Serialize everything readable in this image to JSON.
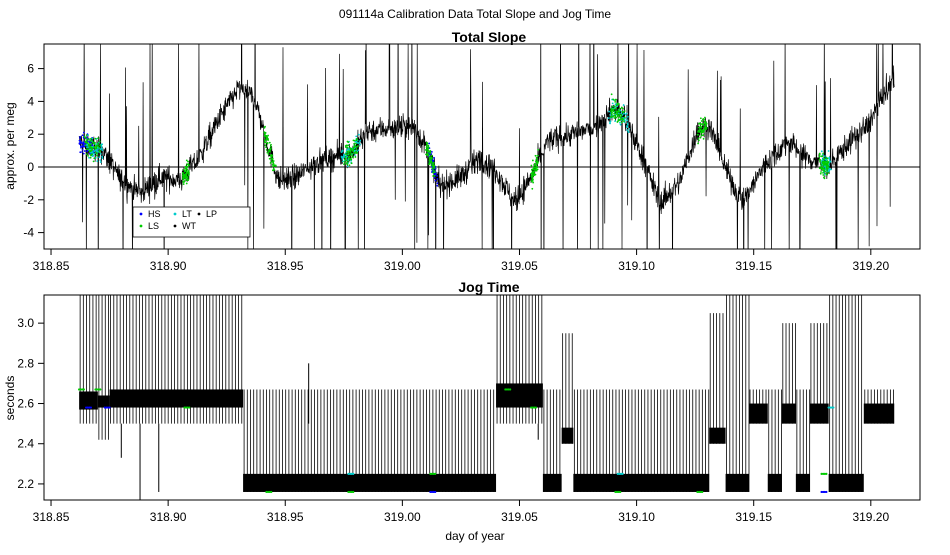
{
  "figure": {
    "title": "091114a   Calibration Data Total Slope and Jog Time",
    "xlabel": "day of year"
  },
  "chart_data": [
    {
      "type": "line",
      "title": "Total Slope",
      "ylabel": "approx. per meg",
      "xlim": [
        318.847,
        319.221
      ],
      "ylim": [
        -5.0,
        7.5
      ],
      "x_ticks": [
        318.85,
        318.9,
        318.95,
        319.0,
        319.05,
        319.1,
        319.15,
        319.2
      ],
      "x_tick_labels": [
        "318.85",
        "318.90",
        "318.95",
        "319.00",
        "319.05",
        "319.10",
        "319.15",
        "319.20"
      ],
      "y_ticks": [
        -4,
        -2,
        0,
        2,
        4,
        6
      ],
      "y_tick_labels": [
        "-4",
        "-2",
        "0",
        "2",
        "4",
        "6"
      ],
      "reference_line_y": 0,
      "data_range_x": [
        318.862,
        319.21
      ],
      "trend": [
        {
          "x": 318.862,
          "y": 1.5
        },
        {
          "x": 318.872,
          "y": 1.0
        },
        {
          "x": 318.88,
          "y": -0.8
        },
        {
          "x": 318.888,
          "y": -1.6
        },
        {
          "x": 318.897,
          "y": -0.6
        },
        {
          "x": 318.905,
          "y": -0.8
        },
        {
          "x": 318.913,
          "y": 0.5
        },
        {
          "x": 318.922,
          "y": 3.0
        },
        {
          "x": 318.93,
          "y": 4.8
        },
        {
          "x": 318.937,
          "y": 4.2
        },
        {
          "x": 318.942,
          "y": 1.6
        },
        {
          "x": 318.947,
          "y": -0.8
        },
        {
          "x": 318.955,
          "y": -0.6
        },
        {
          "x": 318.962,
          "y": 0.2
        },
        {
          "x": 318.97,
          "y": 0.6
        },
        {
          "x": 318.978,
          "y": 0.8
        },
        {
          "x": 318.985,
          "y": 2.2
        },
        {
          "x": 318.995,
          "y": 2.4
        },
        {
          "x": 319.005,
          "y": 2.4
        },
        {
          "x": 319.011,
          "y": 1.0
        },
        {
          "x": 319.016,
          "y": -1.2
        },
        {
          "x": 319.025,
          "y": -0.6
        },
        {
          "x": 319.033,
          "y": 0.6
        },
        {
          "x": 319.04,
          "y": -0.2
        },
        {
          "x": 319.048,
          "y": -2.2
        },
        {
          "x": 319.055,
          "y": -0.6
        },
        {
          "x": 319.062,
          "y": 1.6
        },
        {
          "x": 319.072,
          "y": 2.0
        },
        {
          "x": 319.082,
          "y": 2.4
        },
        {
          "x": 319.09,
          "y": 3.6
        },
        {
          "x": 319.095,
          "y": 3.0
        },
        {
          "x": 319.102,
          "y": 0.8
        },
        {
          "x": 319.11,
          "y": -2.2
        },
        {
          "x": 319.118,
          "y": -1.0
        },
        {
          "x": 319.126,
          "y": 2.2
        },
        {
          "x": 319.131,
          "y": 2.6
        },
        {
          "x": 319.137,
          "y": 0.2
        },
        {
          "x": 319.145,
          "y": -2.2
        },
        {
          "x": 319.155,
          "y": 0.2
        },
        {
          "x": 319.165,
          "y": 1.6
        },
        {
          "x": 319.172,
          "y": 0.6
        },
        {
          "x": 319.182,
          "y": 0.0
        },
        {
          "x": 319.19,
          "y": 1.4
        },
        {
          "x": 319.198,
          "y": 2.4
        },
        {
          "x": 319.205,
          "y": 4.2
        },
        {
          "x": 319.21,
          "y": 5.4
        }
      ],
      "highlight_spans": [
        {
          "x": [
            318.862,
            318.868
          ],
          "color": "#0000ff"
        },
        {
          "x": [
            318.865,
            318.872
          ],
          "color": "#00cccc"
        },
        {
          "x": [
            318.864,
            318.871
          ],
          "color": "#00cc00"
        },
        {
          "x": [
            318.906,
            318.909
          ],
          "color": "#00cc00"
        },
        {
          "x": [
            318.941,
            318.946
          ],
          "color": "#00cc00"
        },
        {
          "x": [
            318.974,
            318.982
          ],
          "color": "#00cccc"
        },
        {
          "x": [
            318.975,
            318.981
          ],
          "color": "#00cc00"
        },
        {
          "x": [
            319.011,
            319.015
          ],
          "color": "#0000ff"
        },
        {
          "x": [
            319.01,
            319.014
          ],
          "color": "#00cc00"
        },
        {
          "x": [
            319.055,
            319.058
          ],
          "color": "#00cc00"
        },
        {
          "x": [
            319.088,
            319.097
          ],
          "color": "#00cccc"
        },
        {
          "x": [
            319.089,
            319.095
          ],
          "color": "#00cc00"
        },
        {
          "x": [
            319.126,
            319.13
          ],
          "color": "#00cc00"
        },
        {
          "x": [
            319.179,
            319.183
          ],
          "color": "#00cccc"
        },
        {
          "x": [
            319.178,
            319.182
          ],
          "color": "#00cc00"
        }
      ],
      "legend": {
        "placement": "bottom-left",
        "entries": [
          {
            "label": "HS",
            "color": "#0000ff"
          },
          {
            "label": "LS",
            "color": "#00cc00"
          },
          {
            "label": "LT",
            "color": "#00cccc"
          },
          {
            "label": "WT",
            "color": "#000000"
          },
          {
            "label": "LP",
            "color": "#000000"
          }
        ]
      }
    },
    {
      "type": "line",
      "title": "Jog Time",
      "ylabel": "seconds",
      "xlim": [
        318.847,
        319.221
      ],
      "ylim": [
        2.12,
        3.14
      ],
      "x_ticks": [
        318.85,
        318.9,
        318.95,
        319.0,
        319.05,
        319.1,
        319.15,
        319.2
      ],
      "x_tick_labels": [
        "318.85",
        "318.90",
        "318.95",
        "319.00",
        "319.05",
        "319.10",
        "319.15",
        "319.20"
      ],
      "y_ticks": [
        2.2,
        2.4,
        2.6,
        2.8,
        3.0
      ],
      "y_tick_labels": [
        "2.2",
        "2.4",
        "2.6",
        "2.8",
        "3.0"
      ],
      "segments": [
        {
          "x": [
            318.862,
            318.87
          ],
          "base": 2.6,
          "band": [
            2.57,
            2.66
          ],
          "top": 3.14,
          "bottom": 2.5
        },
        {
          "x": [
            318.87,
            318.875
          ],
          "base": 2.6,
          "band": [
            2.58,
            2.64
          ],
          "top": 3.14,
          "bottom": 2.42
        },
        {
          "x": [
            318.875,
            318.932
          ],
          "base": 2.62,
          "band": [
            2.58,
            2.67
          ],
          "top": 3.14,
          "bottom": 2.5
        },
        {
          "x": [
            318.932,
            319.04
          ],
          "base": 2.2,
          "band": [
            2.16,
            2.25
          ],
          "top": 2.67,
          "bottom": 2.16
        },
        {
          "x": [
            319.04,
            319.06
          ],
          "base": 2.64,
          "band": [
            2.58,
            2.7
          ],
          "top": 3.14,
          "bottom": 2.5
        },
        {
          "x": [
            319.06,
            319.068
          ],
          "base": 2.2,
          "band": [
            2.16,
            2.25
          ],
          "top": 2.67,
          "bottom": 2.16
        },
        {
          "x": [
            319.068,
            319.073
          ],
          "base": 2.44,
          "band": [
            2.4,
            2.48
          ],
          "top": 2.95,
          "bottom": 2.4
        },
        {
          "x": [
            319.073,
            319.131
          ],
          "base": 2.2,
          "band": [
            2.16,
            2.25
          ],
          "top": 2.67,
          "bottom": 2.16
        },
        {
          "x": [
            319.131,
            319.138
          ],
          "base": 2.44,
          "band": [
            2.4,
            2.48
          ],
          "top": 3.05,
          "bottom": 2.4
        },
        {
          "x": [
            319.138,
            319.148
          ],
          "base": 2.2,
          "band": [
            2.16,
            2.25
          ],
          "top": 3.14,
          "bottom": 2.16
        },
        {
          "x": [
            319.148,
            319.156
          ],
          "base": 2.55,
          "band": [
            2.5,
            2.6
          ],
          "top": 2.67,
          "bottom": 2.5
        },
        {
          "x": [
            319.156,
            319.162
          ],
          "base": 2.2,
          "band": [
            2.16,
            2.25
          ],
          "top": 2.67,
          "bottom": 2.16
        },
        {
          "x": [
            319.162,
            319.168
          ],
          "base": 2.55,
          "band": [
            2.5,
            2.6
          ],
          "top": 3.0,
          "bottom": 2.5
        },
        {
          "x": [
            319.168,
            319.174
          ],
          "base": 2.2,
          "band": [
            2.16,
            2.25
          ],
          "top": 2.67,
          "bottom": 2.16
        },
        {
          "x": [
            319.174,
            319.182
          ],
          "base": 2.55,
          "band": [
            2.5,
            2.6
          ],
          "top": 3.0,
          "bottom": 2.5
        },
        {
          "x": [
            319.182,
            319.197
          ],
          "base": 2.2,
          "band": [
            2.16,
            2.25
          ],
          "top": 3.14,
          "bottom": 2.16
        },
        {
          "x": [
            319.197,
            319.21
          ],
          "base": 2.55,
          "band": [
            2.5,
            2.6
          ],
          "top": 2.67,
          "bottom": 2.5
        }
      ],
      "outliers": [
        {
          "x": 318.88,
          "y": 2.33
        },
        {
          "x": 318.888,
          "y": 2.12
        },
        {
          "x": 318.896,
          "y": 2.16
        },
        {
          "x": 318.944,
          "y": 2.5
        },
        {
          "x": 318.96,
          "y": 2.8
        },
        {
          "x": 319.058,
          "y": 2.42
        }
      ],
      "markers": [
        {
          "x": 318.863,
          "y": 2.67,
          "color": "#00cc00"
        },
        {
          "x": 318.866,
          "y": 2.58,
          "color": "#0000ff"
        },
        {
          "x": 318.87,
          "y": 2.67,
          "color": "#00cc00"
        },
        {
          "x": 318.874,
          "y": 2.58,
          "color": "#0000ff"
        },
        {
          "x": 318.908,
          "y": 2.58,
          "color": "#00cc00"
        },
        {
          "x": 318.943,
          "y": 2.16,
          "color": "#00cc00"
        },
        {
          "x": 318.978,
          "y": 2.16,
          "color": "#00cc00"
        },
        {
          "x": 318.978,
          "y": 2.25,
          "color": "#00cccc"
        },
        {
          "x": 319.013,
          "y": 2.16,
          "color": "#0000ff"
        },
        {
          "x": 319.013,
          "y": 2.25,
          "color": "#00cc00"
        },
        {
          "x": 319.045,
          "y": 2.67,
          "color": "#00cc00"
        },
        {
          "x": 319.056,
          "y": 2.58,
          "color": "#00cc00"
        },
        {
          "x": 319.092,
          "y": 2.16,
          "color": "#00cc00"
        },
        {
          "x": 319.093,
          "y": 2.25,
          "color": "#00cccc"
        },
        {
          "x": 319.127,
          "y": 2.16,
          "color": "#00cc00"
        },
        {
          "x": 319.18,
          "y": 2.16,
          "color": "#0000ff"
        },
        {
          "x": 319.18,
          "y": 2.25,
          "color": "#00cc00"
        },
        {
          "x": 319.183,
          "y": 2.58,
          "color": "#00cccc"
        }
      ]
    }
  ]
}
